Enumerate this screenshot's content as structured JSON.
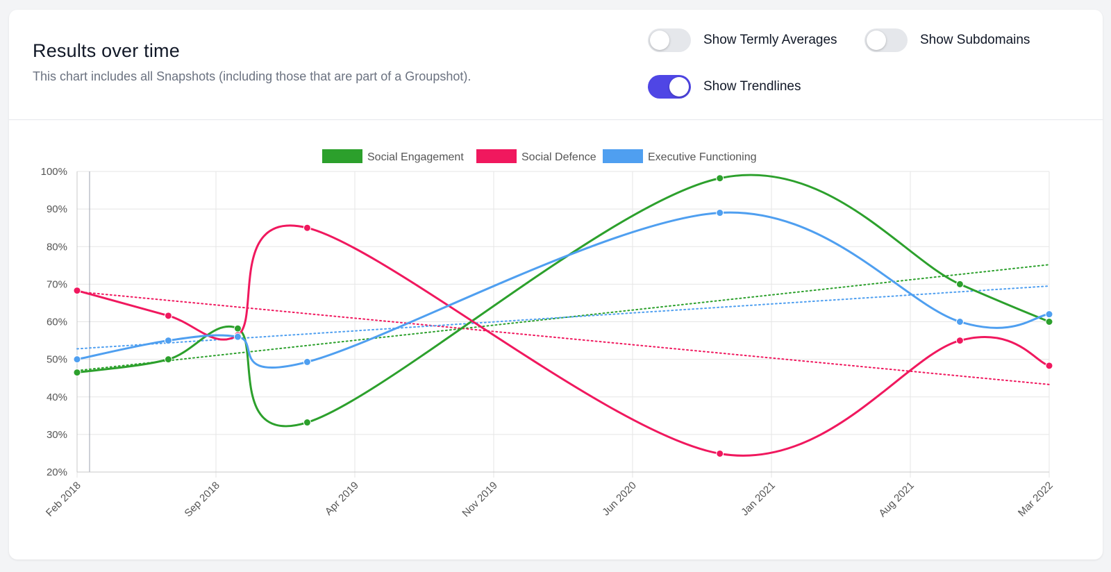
{
  "header": {
    "title": "Results over time",
    "subtitle": "This chart includes all Snapshots (including those that are part of a Groupshot)."
  },
  "toggles": [
    {
      "label": "Show Termly Averages",
      "on": false
    },
    {
      "label": "Show Subdomains",
      "on": false
    },
    {
      "label": "Show Trendlines",
      "on": true
    }
  ],
  "colors": {
    "accent": "#4f46e5",
    "toggle_off": "#e5e7eb"
  },
  "chart_data": {
    "type": "line",
    "title": "",
    "xlabel": "",
    "ylabel": "",
    "x_ticks": [
      "Feb 2018",
      "Sep 2018",
      "Apr 2019",
      "Nov 2019",
      "Jun 2020",
      "Jan 2021",
      "Aug 2021",
      "Mar 2022"
    ],
    "y_ticks": [
      "20%",
      "30%",
      "40%",
      "50%",
      "60%",
      "70%",
      "80%",
      "90%",
      "100%"
    ],
    "ylim": [
      20,
      100
    ],
    "xlim_months": [
      0,
      49
    ],
    "legend_position": "top-center",
    "trendlines": true,
    "series": [
      {
        "name": "Social Engagement",
        "color": "#2ca02c",
        "x_months": [
          0,
          4.6,
          8.1,
          11.6,
          32.4,
          44.5,
          49
        ],
        "values": [
          46.5,
          50,
          58.2,
          33.2,
          98.2,
          70,
          60
        ],
        "trend": [
          47,
          75.2
        ]
      },
      {
        "name": "Social Defence",
        "color": "#f0185e",
        "x_months": [
          0,
          4.6,
          8.1,
          11.6,
          32.4,
          44.5,
          49
        ],
        "values": [
          68.3,
          61.6,
          56.4,
          85,
          24.9,
          55,
          48.3
        ],
        "trend": [
          68,
          43.3
        ]
      },
      {
        "name": "Executive Functioning",
        "color": "#4f9ff0",
        "x_months": [
          0,
          4.6,
          8.1,
          11.6,
          32.4,
          44.5,
          49
        ],
        "values": [
          50,
          55,
          56,
          49.3,
          89,
          60,
          62
        ],
        "trend": [
          52.8,
          69.5
        ]
      }
    ]
  }
}
